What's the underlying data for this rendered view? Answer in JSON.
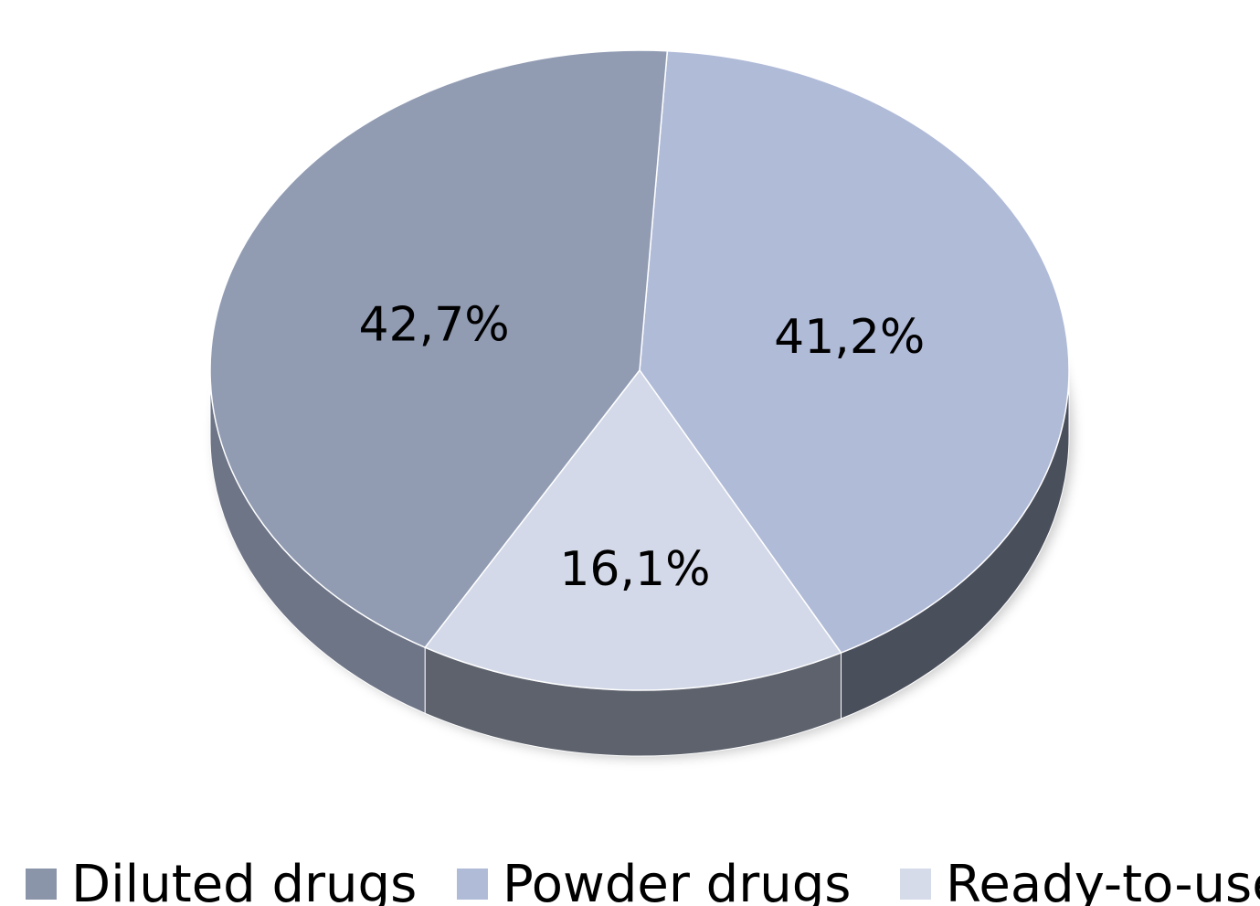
{
  "chart_data": {
    "type": "pie",
    "categories": [
      "Diluted drugs",
      "Powder drugs",
      "Ready-to-use"
    ],
    "values": [
      42.7,
      41.2,
      16.1
    ],
    "data_labels": [
      "42,7%",
      "41,2%",
      "16,1%"
    ],
    "colors": [
      "#919cb3",
      "#b0bbd8",
      "#d3d9e8"
    ],
    "side_colors": [
      "#6e7587",
      "#4a4f5c",
      "#5d626d"
    ],
    "start_angle_deg": 176,
    "direction": "clockwise",
    "three_d": true,
    "legend_position": "bottom",
    "title": "",
    "legend": [
      {
        "label": "Diluted drugs",
        "color": "#8b95aa"
      },
      {
        "label": "Powder drugs",
        "color": "#b0bbd8"
      },
      {
        "label": "Ready-to-use",
        "color": "#d6dbe9"
      }
    ]
  }
}
